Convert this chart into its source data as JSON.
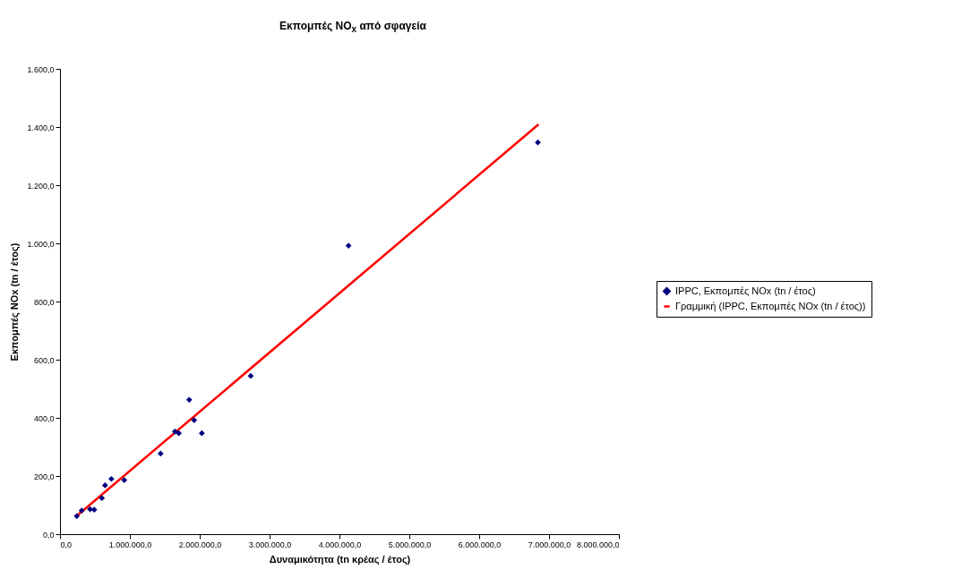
{
  "chart_data": {
    "type": "scatter",
    "title": "Εκπομπές NO$_{x}$ από σφαγεία",
    "xlabel": "Δυναμικότητα (tn κρέας / έτος)",
    "ylabel": "Εκπομπές NOx (tn / έτος)",
    "xlim": [
      0,
      8000000
    ],
    "ylim": [
      0,
      1600
    ],
    "xticks": [
      {
        "value": 0,
        "label": "0,0"
      },
      {
        "value": 1000000,
        "label": "1.000.000,0"
      },
      {
        "value": 2000000,
        "label": "2.000.000,0"
      },
      {
        "value": 3000000,
        "label": "3.000.000,0"
      },
      {
        "value": 4000000,
        "label": "4.000.000,0"
      },
      {
        "value": 5000000,
        "label": "5.000.000,0"
      },
      {
        "value": 6000000,
        "label": "6.000.000,0"
      },
      {
        "value": 7000000,
        "label": "7.000.000,0"
      },
      {
        "value": 8000000,
        "label": "8.000.000,0"
      }
    ],
    "yticks": [
      {
        "value": 0,
        "label": "0,0"
      },
      {
        "value": 200,
        "label": "200,0"
      },
      {
        "value": 400,
        "label": "400,0"
      },
      {
        "value": 600,
        "label": "600,0"
      },
      {
        "value": 800,
        "label": "800,0"
      },
      {
        "value": 1000,
        "label": "1.000,0"
      },
      {
        "value": 1200,
        "label": "1.200,0"
      },
      {
        "value": 1400,
        "label": "1.400,0"
      },
      {
        "value": 1600,
        "label": "1.600,0"
      }
    ],
    "grid": false,
    "legend": "right",
    "series": [
      {
        "name": "IPPC, Εκπομπές NOx (tn / έτος)",
        "marker": "diamond",
        "color": "#000080",
        "x": [
          240000,
          310000,
          430000,
          490000,
          600000,
          645000,
          735000,
          920000,
          1440000,
          1645000,
          1700000,
          1850000,
          1920000,
          2030000,
          2730000,
          4130000,
          6840000
        ],
        "values": [
          62,
          81,
          86,
          84,
          124,
          168,
          190,
          186,
          277,
          353,
          347,
          462,
          392,
          347,
          544,
          992,
          1347
        ]
      },
      {
        "name": "Γραμμική (IPPC, Εκπομπές NOx (tn / έτος))",
        "type": "line",
        "color": "#ff0000",
        "line_style": "solid",
        "x": [
          230000,
          6850000
        ],
        "values": [
          61,
          1409
        ]
      }
    ]
  }
}
